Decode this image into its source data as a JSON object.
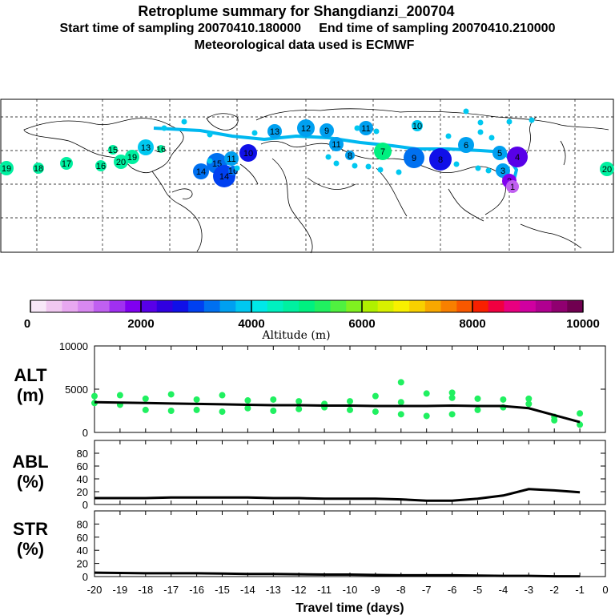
{
  "header": {
    "title": "Retroplume summary for Shangdianzi_200704",
    "sampling": "Start time of sampling 20070410.180000     End time of sampling 20070410.210000",
    "met": "Meteorological data used is ECMWF"
  },
  "colorbar": {
    "colors": [
      "#f8e8f8",
      "#f0c8f0",
      "#e8a8f0",
      "#d888f0",
      "#c060f0",
      "#a030f0",
      "#8000f0",
      "#5800e8",
      "#3000e0",
      "#1010e8",
      "#0040f0",
      "#0070f0",
      "#00a0f0",
      "#00c8f0",
      "#00e8e8",
      "#00f0c0",
      "#00f0a0",
      "#00f080",
      "#20f060",
      "#50f040",
      "#80f020",
      "#b0f000",
      "#d8f000",
      "#f8f000",
      "#f8d000",
      "#f8a800",
      "#f88000",
      "#f85800",
      "#f82000",
      "#f00040",
      "#e80080",
      "#d000a0",
      "#b00090",
      "#900070",
      "#700050"
    ],
    "tick_labels": [
      "0",
      "2000",
      "4000",
      "6000",
      "8000",
      "10000"
    ],
    "label": "Altitude (m)"
  },
  "map_points": [
    {
      "n": "19",
      "c": "#00f0a0"
    },
    {
      "n": "18",
      "c": "#00f0a0"
    },
    {
      "n": "17",
      "c": "#00f0a0"
    },
    {
      "n": "16",
      "c": "#00f0a0"
    },
    {
      "n": "20",
      "c": "#00f0a0"
    },
    {
      "n": "19",
      "c": "#00f0a0"
    },
    {
      "n": "13",
      "c": "#00c8f0"
    },
    {
      "n": "15",
      "c": "#00f0a0"
    },
    {
      "n": "16",
      "c": "#00f0a0"
    },
    {
      "n": "14",
      "c": "#0070f0"
    },
    {
      "n": "15",
      "c": "#0070f0"
    },
    {
      "n": "14",
      "c": "#0040f0"
    },
    {
      "n": "11",
      "c": "#00a0f0"
    },
    {
      "n": "16",
      "c": "#0070f0"
    },
    {
      "n": "10",
      "c": "#1010e8"
    },
    {
      "n": "13",
      "c": "#00a0f0"
    },
    {
      "n": "12",
      "c": "#00a0f0"
    },
    {
      "n": "9",
      "c": "#00a0f0"
    },
    {
      "n": "11",
      "c": "#00a0f0"
    },
    {
      "n": "11",
      "c": "#00a0f0"
    },
    {
      "n": "10",
      "c": "#00c8f0"
    },
    {
      "n": "8",
      "c": "#00a0f0"
    },
    {
      "n": "7",
      "c": "#00f080"
    },
    {
      "n": "9",
      "c": "#0070f0"
    },
    {
      "n": "8",
      "c": "#1010e8"
    },
    {
      "n": "6",
      "c": "#00a0f0"
    },
    {
      "n": "5",
      "c": "#00a0f0"
    },
    {
      "n": "4",
      "c": "#5800e8"
    },
    {
      "n": "3",
      "c": "#00a0f0"
    },
    {
      "n": "2",
      "c": "#8000f0"
    },
    {
      "n": "1",
      "c": "#c060f0"
    },
    {
      "n": "20",
      "c": "#00f0a0"
    }
  ],
  "panels": {
    "alt": {
      "label1": "ALT",
      "label2": "(m)"
    },
    "abl": {
      "label1": "ABL",
      "label2": "(%)"
    },
    "str": {
      "label1": "STR",
      "label2": "(%)"
    }
  },
  "chart_data": [
    {
      "type": "line",
      "title": "ALT",
      "ylabel": "(m)",
      "x": [
        -20,
        -19,
        -18,
        -17,
        -16,
        -15,
        -14,
        -13,
        -12,
        -11,
        -10,
        -9,
        -8,
        -7,
        -6,
        -5,
        -4,
        -3,
        -2,
        -1
      ],
      "series": [
        {
          "name": "median altitude",
          "values": [
            3500,
            3450,
            3400,
            3350,
            3300,
            3250,
            3200,
            3150,
            3150,
            3100,
            3100,
            3050,
            3050,
            3050,
            3100,
            3050,
            3050,
            2800,
            2000,
            1200
          ]
        }
      ],
      "scatter_points": [
        {
          "x": -20,
          "y": 4200
        },
        {
          "x": -20,
          "y": 3400
        },
        {
          "x": -19,
          "y": 4300
        },
        {
          "x": -19,
          "y": 3200
        },
        {
          "x": -18,
          "y": 3900
        },
        {
          "x": -18,
          "y": 2600
        },
        {
          "x": -17,
          "y": 4400
        },
        {
          "x": -17,
          "y": 2500
        },
        {
          "x": -16,
          "y": 3800
        },
        {
          "x": -16,
          "y": 2600
        },
        {
          "x": -15,
          "y": 4300
        },
        {
          "x": -15,
          "y": 2400
        },
        {
          "x": -14,
          "y": 3700
        },
        {
          "x": -14,
          "y": 2800
        },
        {
          "x": -13,
          "y": 3800
        },
        {
          "x": -13,
          "y": 2500
        },
        {
          "x": -12,
          "y": 3600
        },
        {
          "x": -12,
          "y": 2700
        },
        {
          "x": -11,
          "y": 3300
        },
        {
          "x": -11,
          "y": 2900
        },
        {
          "x": -10,
          "y": 3600
        },
        {
          "x": -10,
          "y": 2600
        },
        {
          "x": -9,
          "y": 4200
        },
        {
          "x": -9,
          "y": 2400
        },
        {
          "x": -8,
          "y": 3500
        },
        {
          "x": -8,
          "y": 2100
        },
        {
          "x": -7,
          "y": 4500
        },
        {
          "x": -7,
          "y": 1900
        },
        {
          "x": -6,
          "y": 4600
        },
        {
          "x": -6,
          "y": 2100
        },
        {
          "x": -5,
          "y": 3900
        },
        {
          "x": -5,
          "y": 2600
        },
        {
          "x": -4,
          "y": 3800
        },
        {
          "x": -4,
          "y": 2900
        },
        {
          "x": -3,
          "y": 3300
        },
        {
          "x": -3,
          "y": 3900
        },
        {
          "x": -2,
          "y": 1800
        },
        {
          "x": -2,
          "y": 1400
        },
        {
          "x": -1,
          "y": 900
        },
        {
          "x": -1,
          "y": 2200
        },
        {
          "x": -8,
          "y": 5800
        },
        {
          "x": -6,
          "y": 4000
        }
      ],
      "ylim": [
        0,
        10000
      ],
      "yticks": [
        "0",
        "5000",
        "10000"
      ]
    },
    {
      "type": "line",
      "title": "ABL",
      "ylabel": "(%)",
      "x": [
        -20,
        -19,
        -18,
        -17,
        -16,
        -15,
        -14,
        -13,
        -12,
        -11,
        -10,
        -9,
        -8,
        -7,
        -6,
        -5,
        -4,
        -3,
        -2,
        -1
      ],
      "series": [
        {
          "name": "ABL fraction",
          "values": [
            10,
            10,
            10,
            11,
            11,
            11,
            11,
            10,
            10,
            9,
            9,
            9,
            8,
            6,
            6,
            9,
            14,
            24,
            22,
            19
          ]
        }
      ],
      "ylim": [
        0,
        100
      ],
      "yticks": [
        "0",
        "20",
        "40",
        "60",
        "80"
      ]
    },
    {
      "type": "line",
      "title": "STR",
      "ylabel": "(%)",
      "x": [
        -20,
        -19,
        -18,
        -17,
        -16,
        -15,
        -14,
        -13,
        -12,
        -11,
        -10,
        -9,
        -8,
        -7,
        -6,
        -5,
        -4,
        -3,
        -2,
        -1
      ],
      "series": [
        {
          "name": "stratosphere fraction",
          "values": [
            6,
            5.5,
            5,
            5,
            5,
            4.5,
            4,
            4,
            3.5,
            3,
            3,
            2.5,
            2,
            2,
            2,
            1.5,
            1,
            1,
            0.5,
            0.5
          ]
        }
      ],
      "ylim": [
        0,
        100
      ],
      "yticks": [
        "0",
        "20",
        "40",
        "60",
        "80"
      ],
      "xticks": [
        "-20",
        "-19",
        "-18",
        "-17",
        "-16",
        "-15",
        "-14",
        "-13",
        "-12",
        "-11",
        "-10",
        "-9",
        "-8",
        "-7",
        "-6",
        "-5",
        "-4",
        "-3",
        "-2",
        "-1",
        "0"
      ],
      "xlabel": "Travel time (days)"
    }
  ]
}
